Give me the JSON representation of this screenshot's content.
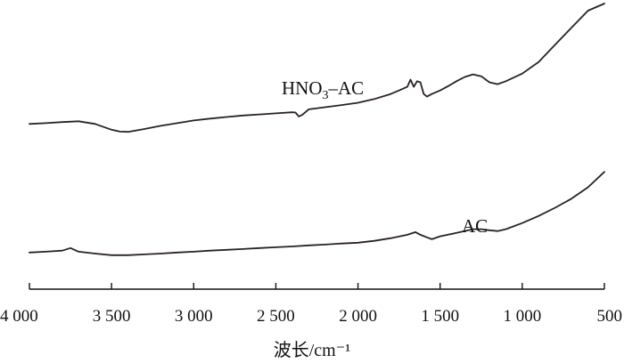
{
  "chart_data": {
    "type": "line",
    "title": "",
    "xlabel": "波长/cm⁻¹",
    "ylabel": "",
    "xlim": [
      4000,
      500
    ],
    "x_reversed": true,
    "x_ticks": [
      {
        "value": 4000,
        "label": "4 000"
      },
      {
        "value": 3500,
        "label": "3 500"
      },
      {
        "value": 3000,
        "label": "3 000"
      },
      {
        "value": 2500,
        "label": "2 500"
      },
      {
        "value": 2000,
        "label": "2 000"
      },
      {
        "value": 1500,
        "label": "1 500"
      },
      {
        "value": 1000,
        "label": "1 000"
      },
      {
        "value": 500,
        "label": "500"
      }
    ],
    "ylim": [
      0,
      100
    ],
    "y_axis_visible": false,
    "grid": false,
    "legend": "none",
    "line_color": "#2a2220",
    "series": [
      {
        "name": "HNO3–AC",
        "label_base": "HNO",
        "label_sub": "3",
        "label_tail": "–AC",
        "points": [
          [
            4000,
            54.6
          ],
          [
            3900,
            54.9
          ],
          [
            3800,
            55.3
          ],
          [
            3700,
            55.6
          ],
          [
            3600,
            54.6
          ],
          [
            3500,
            52.4
          ],
          [
            3450,
            51.7
          ],
          [
            3400,
            51.6
          ],
          [
            3300,
            52.7
          ],
          [
            3200,
            53.9
          ],
          [
            3100,
            54.9
          ],
          [
            3000,
            55.9
          ],
          [
            2900,
            56.6
          ],
          [
            2800,
            57.2
          ],
          [
            2700,
            57.8
          ],
          [
            2600,
            58.2
          ],
          [
            2500,
            58.6
          ],
          [
            2400,
            59.0
          ],
          [
            2380,
            58.9
          ],
          [
            2360,
            57.4
          ],
          [
            2340,
            58.0
          ],
          [
            2300,
            60.1
          ],
          [
            2200,
            60.9
          ],
          [
            2100,
            61.7
          ],
          [
            2000,
            62.6
          ],
          [
            1900,
            64.0
          ],
          [
            1800,
            65.9
          ],
          [
            1750,
            67.2
          ],
          [
            1700,
            68.6
          ],
          [
            1680,
            71.3
          ],
          [
            1660,
            68.6
          ],
          [
            1640,
            70.7
          ],
          [
            1620,
            70.3
          ],
          [
            1600,
            65.9
          ],
          [
            1580,
            64.9
          ],
          [
            1550,
            65.9
          ],
          [
            1500,
            67.2
          ],
          [
            1450,
            68.9
          ],
          [
            1400,
            70.7
          ],
          [
            1350,
            72.3
          ],
          [
            1300,
            73.3
          ],
          [
            1250,
            72.6
          ],
          [
            1200,
            70.3
          ],
          [
            1150,
            69.6
          ],
          [
            1100,
            70.7
          ],
          [
            1000,
            73.6
          ],
          [
            900,
            78.0
          ],
          [
            800,
            84.5
          ],
          [
            700,
            90.9
          ],
          [
            600,
            97.3
          ],
          [
            500,
            100.0
          ]
        ]
      },
      {
        "name": "AC",
        "label_base": "AC",
        "label_sub": "",
        "label_tail": "",
        "points": [
          [
            4000,
            6.1
          ],
          [
            3900,
            6.4
          ],
          [
            3800,
            6.8
          ],
          [
            3750,
            7.8
          ],
          [
            3700,
            6.4
          ],
          [
            3600,
            5.7
          ],
          [
            3500,
            5.1
          ],
          [
            3400,
            5.1
          ],
          [
            3300,
            5.4
          ],
          [
            3200,
            5.7
          ],
          [
            3100,
            6.1
          ],
          [
            3000,
            6.4
          ],
          [
            2900,
            6.8
          ],
          [
            2800,
            7.1
          ],
          [
            2700,
            7.4
          ],
          [
            2600,
            7.8
          ],
          [
            2500,
            8.1
          ],
          [
            2400,
            8.4
          ],
          [
            2300,
            8.8
          ],
          [
            2200,
            9.1
          ],
          [
            2100,
            9.5
          ],
          [
            2000,
            9.8
          ],
          [
            1900,
            10.5
          ],
          [
            1800,
            11.5
          ],
          [
            1700,
            12.8
          ],
          [
            1650,
            13.8
          ],
          [
            1620,
            12.8
          ],
          [
            1580,
            11.8
          ],
          [
            1550,
            11.1
          ],
          [
            1500,
            12.2
          ],
          [
            1400,
            13.5
          ],
          [
            1300,
            14.9
          ],
          [
            1250,
            14.9
          ],
          [
            1200,
            14.5
          ],
          [
            1150,
            14.2
          ],
          [
            1100,
            14.9
          ],
          [
            1000,
            17.2
          ],
          [
            900,
            19.9
          ],
          [
            800,
            23.0
          ],
          [
            700,
            26.4
          ],
          [
            600,
            30.7
          ],
          [
            500,
            36.5
          ]
        ]
      }
    ]
  }
}
